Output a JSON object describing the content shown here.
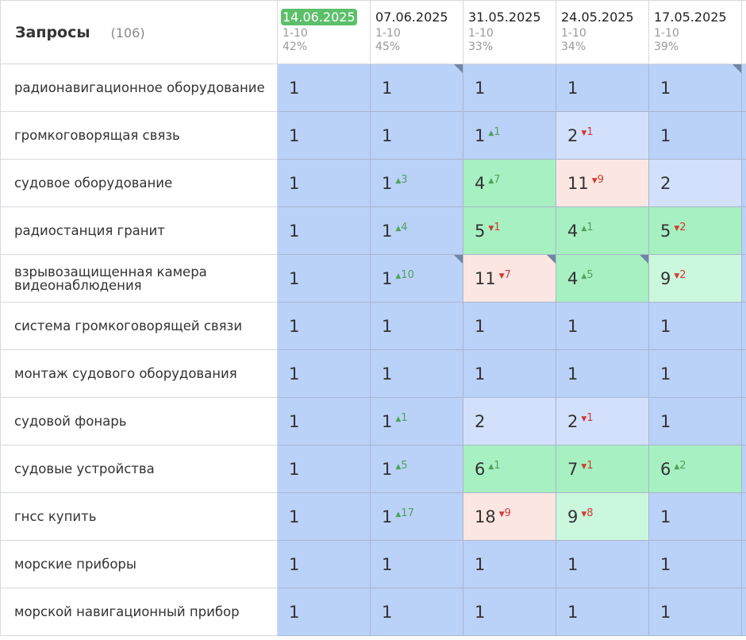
{
  "header": {
    "title": "Запросы",
    "count": "(106)"
  },
  "dates": [
    {
      "date": "14.06.2025",
      "range": "1-10",
      "pct": "42%",
      "current": true
    },
    {
      "date": "07.06.2025",
      "range": "1-10",
      "pct": "45%"
    },
    {
      "date": "31.05.2025",
      "range": "1-10",
      "pct": "33%"
    },
    {
      "date": "24.05.2025",
      "range": "1-10",
      "pct": "34%"
    },
    {
      "date": "17.05.2025",
      "range": "1-10",
      "pct": "39%"
    }
  ],
  "rows": [
    {
      "query": "радионавигационное оборудование",
      "cells": [
        {
          "v": "1",
          "c": "blue"
        },
        {
          "v": "1",
          "c": "blue",
          "corner": true
        },
        {
          "v": "1",
          "c": "blue"
        },
        {
          "v": "1",
          "c": "blue"
        },
        {
          "v": "1",
          "c": "blue",
          "corner": true
        }
      ]
    },
    {
      "query": "громкоговорящая связь",
      "cells": [
        {
          "v": "1",
          "c": "blue"
        },
        {
          "v": "1",
          "c": "blue"
        },
        {
          "v": "1",
          "d": "1",
          "dir": "up",
          "c": "blue"
        },
        {
          "v": "2",
          "d": "1",
          "dir": "dn",
          "c": "lblue"
        },
        {
          "v": "1",
          "c": "blue"
        }
      ]
    },
    {
      "query": "судовое оборудование",
      "cells": [
        {
          "v": "1",
          "c": "blue"
        },
        {
          "v": "1",
          "d": "3",
          "dir": "up",
          "c": "blue"
        },
        {
          "v": "4",
          "d": "7",
          "dir": "up",
          "c": "green"
        },
        {
          "v": "11",
          "d": "9",
          "dir": "dn",
          "c": "pink"
        },
        {
          "v": "2",
          "c": "lblue"
        }
      ]
    },
    {
      "query": "радиостанция гранит",
      "cells": [
        {
          "v": "1",
          "c": "blue"
        },
        {
          "v": "1",
          "d": "4",
          "dir": "up",
          "c": "blue"
        },
        {
          "v": "5",
          "d": "1",
          "dir": "dn",
          "c": "green"
        },
        {
          "v": "4",
          "d": "1",
          "dir": "up",
          "c": "green"
        },
        {
          "v": "5",
          "d": "2",
          "dir": "dn",
          "c": "green"
        }
      ]
    },
    {
      "query": "взрывозащищенная камера видеонаблюдения",
      "cells": [
        {
          "v": "1",
          "c": "blue"
        },
        {
          "v": "1",
          "d": "10",
          "dir": "up",
          "c": "blue",
          "corner": true
        },
        {
          "v": "11",
          "d": "7",
          "dir": "dn",
          "c": "pink",
          "corner": true
        },
        {
          "v": "4",
          "d": "5",
          "dir": "up",
          "c": "green",
          "corner": true
        },
        {
          "v": "9",
          "d": "2",
          "dir": "dn",
          "c": "lgreen"
        }
      ]
    },
    {
      "query": "система громкоговорящей связи",
      "cells": [
        {
          "v": "1",
          "c": "blue"
        },
        {
          "v": "1",
          "c": "blue"
        },
        {
          "v": "1",
          "c": "blue"
        },
        {
          "v": "1",
          "c": "blue"
        },
        {
          "v": "1",
          "c": "blue"
        }
      ]
    },
    {
      "query": "монтаж судового оборудования",
      "cells": [
        {
          "v": "1",
          "c": "blue"
        },
        {
          "v": "1",
          "c": "blue"
        },
        {
          "v": "1",
          "c": "blue"
        },
        {
          "v": "1",
          "c": "blue"
        },
        {
          "v": "1",
          "c": "blue"
        }
      ]
    },
    {
      "query": "судовой фонарь",
      "cells": [
        {
          "v": "1",
          "c": "blue"
        },
        {
          "v": "1",
          "d": "1",
          "dir": "up",
          "c": "blue"
        },
        {
          "v": "2",
          "c": "lblue"
        },
        {
          "v": "2",
          "d": "1",
          "dir": "dn",
          "c": "lblue"
        },
        {
          "v": "1",
          "c": "blue"
        }
      ]
    },
    {
      "query": "судовые устройства",
      "cells": [
        {
          "v": "1",
          "c": "blue"
        },
        {
          "v": "1",
          "d": "5",
          "dir": "up",
          "c": "blue"
        },
        {
          "v": "6",
          "d": "1",
          "dir": "up",
          "c": "green"
        },
        {
          "v": "7",
          "d": "1",
          "dir": "dn",
          "c": "green"
        },
        {
          "v": "6",
          "d": "2",
          "dir": "up",
          "c": "green"
        }
      ]
    },
    {
      "query": "гнсс купить",
      "cells": [
        {
          "v": "1",
          "c": "blue"
        },
        {
          "v": "1",
          "d": "17",
          "dir": "up",
          "c": "blue"
        },
        {
          "v": "18",
          "d": "9",
          "dir": "dn",
          "c": "pink"
        },
        {
          "v": "9",
          "d": "8",
          "dir": "dn",
          "c": "lgreen"
        },
        {
          "v": "1",
          "c": "blue"
        }
      ]
    },
    {
      "query": "морские приборы",
      "cells": [
        {
          "v": "1",
          "c": "blue"
        },
        {
          "v": "1",
          "c": "blue"
        },
        {
          "v": "1",
          "c": "blue"
        },
        {
          "v": "1",
          "c": "blue"
        },
        {
          "v": "1",
          "c": "blue"
        }
      ]
    },
    {
      "query": "морской навигационный прибор",
      "cells": [
        {
          "v": "1",
          "c": "blue"
        },
        {
          "v": "1",
          "c": "blue"
        },
        {
          "v": "1",
          "c": "blue"
        },
        {
          "v": "1",
          "c": "blue"
        },
        {
          "v": "1",
          "c": "blue"
        }
      ]
    }
  ]
}
